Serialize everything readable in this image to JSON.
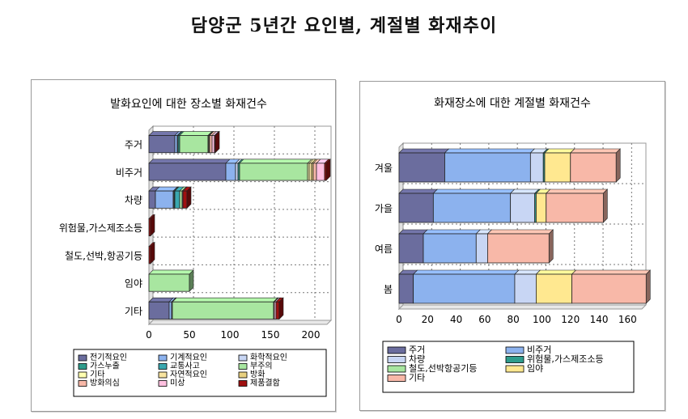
{
  "page": {
    "title": "담양군 5년간 요인별, 계절별 화재추이"
  },
  "colors": {
    "전기적요인": "#6b6d9e",
    "기계적요인": "#8cb2ee",
    "화학적요인": "#c8d6f4",
    "가스누출": "#2f9c8c",
    "교통사고": "#3aa8b0",
    "부주의": "#a8e6a0",
    "기타": "#ffffb0",
    "자연적요인": "#f8e4a0",
    "방화": "#e8d080",
    "방화의심": "#f8b8a8",
    "미상": "#ffc0e0",
    "제품결함": "#a01010",
    "주거": "#6b6d9e",
    "비주거": "#8cb2ee",
    "차량": "#c8d6f4",
    "위험물,가스제조소등": "#2f9c8c",
    "철도,선박항공기등": "#a8e6a0",
    "임야": "#ffe890",
    "기타장소": "#f8b8a8"
  },
  "chart_data": [
    {
      "type": "bar",
      "orientation": "horizontal",
      "stacked": true,
      "title": "발화요인에 대한 장소별 화재건수",
      "categories": [
        "주거",
        "비주거",
        "차량",
        "위험물,가스제조소등",
        "철도,선박,항공기등",
        "임야",
        "기타"
      ],
      "xlim": [
        0,
        220
      ],
      "xticks": [
        0,
        50,
        100,
        150,
        200
      ],
      "grid": true,
      "legend_position": "bottom",
      "series": [
        {
          "name": "전기적요인",
          "values": [
            32,
            95,
            8,
            0,
            0,
            0,
            25
          ]
        },
        {
          "name": "기계적요인",
          "values": [
            3,
            12,
            22,
            0,
            0,
            0,
            3
          ]
        },
        {
          "name": "화학적요인",
          "values": [
            1,
            3,
            1,
            0,
            0,
            0,
            1
          ]
        },
        {
          "name": "가스누출",
          "values": [
            2,
            2,
            1,
            0,
            0,
            0,
            0
          ]
        },
        {
          "name": "교통사고",
          "values": [
            0,
            0,
            6,
            0,
            0,
            0,
            0
          ]
        },
        {
          "name": "부주의",
          "values": [
            35,
            84,
            3,
            0,
            0,
            50,
            125
          ]
        },
        {
          "name": "기타",
          "values": [
            1,
            2,
            0,
            0,
            0,
            0,
            0
          ]
        },
        {
          "name": "자연적요인",
          "values": [
            1,
            3,
            0,
            0,
            0,
            0,
            0
          ]
        },
        {
          "name": "방화",
          "values": [
            0,
            2,
            0,
            0,
            0,
            0,
            0
          ]
        },
        {
          "name": "방화의심",
          "values": [
            3,
            4,
            0,
            0,
            0,
            0,
            1
          ]
        },
        {
          "name": "미상",
          "values": [
            3,
            10,
            1,
            0,
            0,
            0,
            2
          ]
        },
        {
          "name": "제품결함",
          "values": [
            1,
            2,
            5,
            2,
            2,
            0,
            4
          ]
        }
      ]
    },
    {
      "type": "bar",
      "orientation": "horizontal",
      "stacked": true,
      "title": "화재장소에 대한 계절별 화재건수",
      "categories": [
        "겨울",
        "가을",
        "여름",
        "봄"
      ],
      "xlim": [
        0,
        170
      ],
      "xticks": [
        0,
        20,
        40,
        60,
        80,
        100,
        120,
        140,
        160
      ],
      "grid": true,
      "legend_position": "bottom",
      "series": [
        {
          "name": "주거",
          "values": [
            32,
            24,
            17,
            10
          ]
        },
        {
          "name": "비주거",
          "values": [
            60,
            54,
            37,
            71
          ]
        },
        {
          "name": "차량",
          "values": [
            9,
            17,
            8,
            15
          ]
        },
        {
          "name": "위험물,가스제조소등",
          "values": [
            1,
            1,
            0,
            0
          ]
        },
        {
          "name": "철도,선박항공기등",
          "values": [
            0,
            0,
            0,
            0
          ]
        },
        {
          "name": "임야",
          "values": [
            18,
            7,
            0,
            25
          ]
        },
        {
          "name": "기타",
          "values": [
            32,
            40,
            43,
            52
          ]
        }
      ]
    }
  ]
}
